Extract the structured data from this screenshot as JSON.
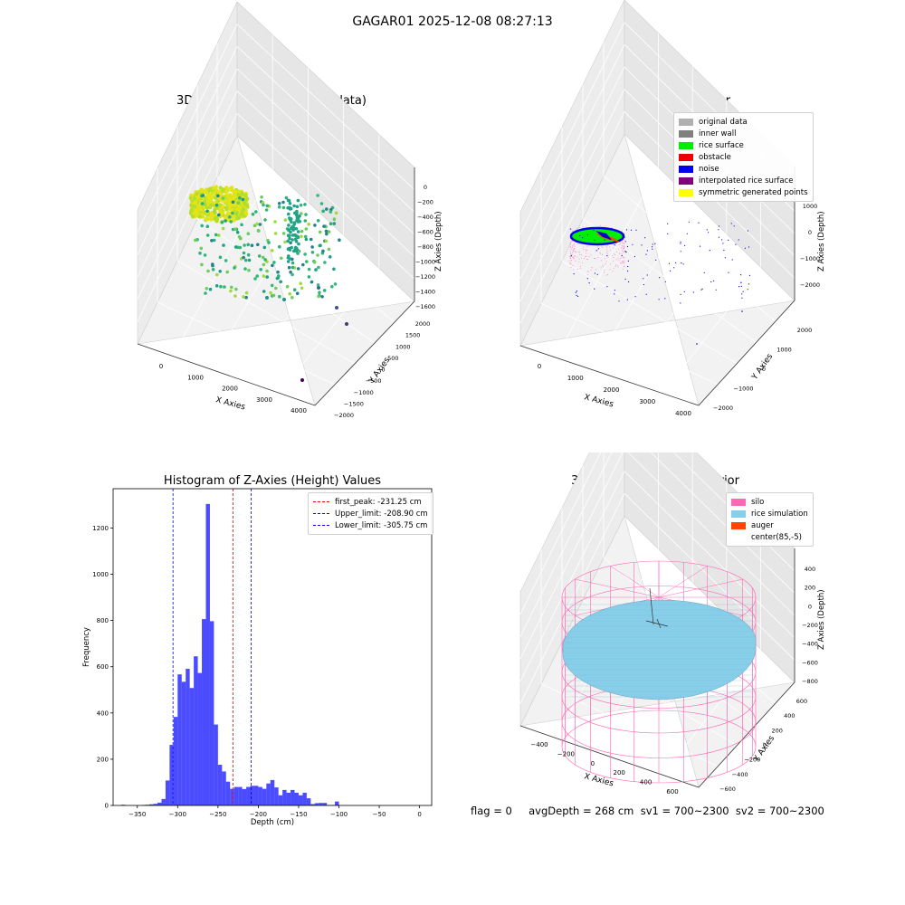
{
  "main_title": "GAGAR01 2025-12-08 08:27:13",
  "status_text": "flag = 0     avgDepth = 268 cm  sv1 = 700~2300  sv2 = 700~2300",
  "chart_data": [
    {
      "type": "scatter",
      "title": "3D Plot of Silo Interior(row data)",
      "xlabel": "X Axies",
      "ylabel": "Y Axies",
      "zlabel": "Z Axies (Depth)",
      "x_ticks": [
        "0",
        "1000",
        "2000",
        "3000",
        "4000"
      ],
      "y_ticks": [
        "−2000",
        "−1500",
        "−1000",
        "−500",
        "0",
        "500",
        "1000",
        "1500",
        "2000"
      ],
      "z_ticks": [
        "0",
        "−200",
        "−400",
        "−600",
        "−800",
        "−1000",
        "−1200",
        "−1400",
        "−1600"
      ],
      "colormap": "viridis"
    },
    {
      "type": "scatter",
      "title": "3D classify of Silo Interior",
      "xlabel": "X Axies",
      "ylabel": "Y Axies",
      "zlabel": "Z Axies (Depth)",
      "x_ticks": [
        "0",
        "1000",
        "2000",
        "3000",
        "4000"
      ],
      "y_ticks": [
        "−2000",
        "−1000",
        "0",
        "1000",
        "2000"
      ],
      "z_ticks": [
        "1000",
        "0",
        "−1000",
        "−2000"
      ],
      "legend": [
        {
          "label": "original data",
          "color": "#b0b0b0"
        },
        {
          "label": "inner wall",
          "color": "#808080"
        },
        {
          "label": "rice surface",
          "color": "#00ee00"
        },
        {
          "label": "obstacle",
          "color": "#ee0000"
        },
        {
          "label": "noise",
          "color": "#0000ee"
        },
        {
          "label": "interpolated rice surface",
          "color": "#800080"
        },
        {
          "label": "symmetric generated points",
          "color": "#ffff00"
        }
      ],
      "legend_loc": "top-right"
    },
    {
      "type": "bar",
      "title": "Histogram of Z-Axies (Height) Values",
      "xlabel": "Depth (cm)",
      "ylabel": "Frequency",
      "xlim": [
        -380,
        15
      ],
      "ylim": [
        0,
        1370
      ],
      "x_ticks": [
        -350,
        -300,
        -250,
        -200,
        -150,
        -100,
        -50,
        0
      ],
      "y_ticks": [
        0,
        200,
        400,
        600,
        800,
        1000,
        1200
      ],
      "bin_width": 5,
      "color": "#0000ff",
      "bins": [
        {
          "x": -370,
          "v": 3
        },
        {
          "x": -345,
          "v": 2
        },
        {
          "x": -340,
          "v": 3
        },
        {
          "x": -335,
          "v": 5
        },
        {
          "x": -330,
          "v": 7
        },
        {
          "x": -325,
          "v": 12
        },
        {
          "x": -320,
          "v": 28
        },
        {
          "x": -315,
          "v": 108
        },
        {
          "x": -310,
          "v": 262
        },
        {
          "x": -305,
          "v": 383
        },
        {
          "x": -300,
          "v": 567
        },
        {
          "x": -295,
          "v": 535
        },
        {
          "x": -290,
          "v": 591
        },
        {
          "x": -285,
          "v": 508
        },
        {
          "x": -280,
          "v": 645
        },
        {
          "x": -275,
          "v": 573
        },
        {
          "x": -270,
          "v": 806
        },
        {
          "x": -265,
          "v": 1304
        },
        {
          "x": -260,
          "v": 797
        },
        {
          "x": -255,
          "v": 350
        },
        {
          "x": -250,
          "v": 176
        },
        {
          "x": -245,
          "v": 147
        },
        {
          "x": -240,
          "v": 103
        },
        {
          "x": -235,
          "v": 72
        },
        {
          "x": -230,
          "v": 80
        },
        {
          "x": -225,
          "v": 80
        },
        {
          "x": -220,
          "v": 71
        },
        {
          "x": -215,
          "v": 80
        },
        {
          "x": -210,
          "v": 85
        },
        {
          "x": -205,
          "v": 85
        },
        {
          "x": -200,
          "v": 80
        },
        {
          "x": -195,
          "v": 72
        },
        {
          "x": -190,
          "v": 95
        },
        {
          "x": -185,
          "v": 110
        },
        {
          "x": -180,
          "v": 78
        },
        {
          "x": -175,
          "v": 44
        },
        {
          "x": -170,
          "v": 67
        },
        {
          "x": -165,
          "v": 55
        },
        {
          "x": -160,
          "v": 67
        },
        {
          "x": -155,
          "v": 55
        },
        {
          "x": -150,
          "v": 44
        },
        {
          "x": -145,
          "v": 55
        },
        {
          "x": -140,
          "v": 31
        },
        {
          "x": -135,
          "v": 6
        },
        {
          "x": -130,
          "v": 10
        },
        {
          "x": -125,
          "v": 11
        },
        {
          "x": -120,
          "v": 11
        },
        {
          "x": -115,
          "v": 2
        },
        {
          "x": -110,
          "v": 2
        },
        {
          "x": -105,
          "v": 17
        }
      ],
      "vlines": [
        {
          "x": -231.25,
          "color": "#ff0000",
          "label": "first_peak: -231.25 cm"
        },
        {
          "x": -208.9,
          "color": "#0000ff",
          "label": "Upper_limit: -208.90 cm"
        },
        {
          "x": -305.75,
          "color": "#0000ff",
          "label": "Lower_limit: -305.75 cm"
        }
      ],
      "legend_loc": "top-right"
    },
    {
      "type": "scatter",
      "title": "3D simulation of Silo Interior",
      "xlabel": "X Axies",
      "ylabel": "Y Axies",
      "zlabel": "Z Axies (Depth)",
      "x_ticks": [
        "−400",
        "−200",
        "0",
        "200",
        "400",
        "600"
      ],
      "y_ticks": [
        "−600",
        "−400",
        "−200",
        "0",
        "200",
        "400",
        "600"
      ],
      "z_ticks": [
        "400",
        "200",
        "0",
        "−200",
        "−400",
        "−600",
        "−800"
      ],
      "legend": [
        {
          "label": "silo",
          "color": "#ff69b4"
        },
        {
          "label": "rice simulation",
          "color": "#87ceeb"
        },
        {
          "label": "auger",
          "color": "#ff4500"
        },
        {
          "label": "center(85,-5)",
          "color": "#ffffff"
        }
      ],
      "legend_loc": "top-right"
    }
  ]
}
